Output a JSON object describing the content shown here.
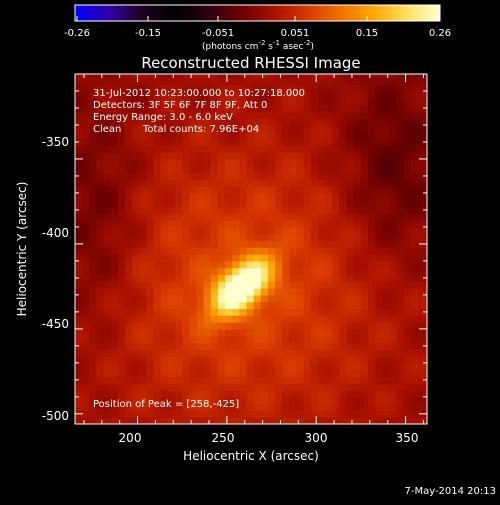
{
  "colorbar": {
    "ticks": [
      "-0.26",
      "-0.15",
      "-0.051",
      "0.051",
      "0.15",
      "0.26"
    ],
    "unit_main": "(photons cm",
    "unit_sup1": "-2",
    "unit_mid": " s",
    "unit_sup2": "-1",
    "unit_tail": " asec",
    "unit_sup3": "-2",
    "unit_close": ")",
    "colors": [
      "#0000ff",
      "#3000aa",
      "#200020",
      "#000000",
      "#2a0010",
      "#6a0000",
      "#a81000",
      "#d83800",
      "#f07000",
      "#ffa800",
      "#ffe060",
      "#ffffd0"
    ]
  },
  "chart_data": {
    "type": "heatmap",
    "title": "Reconstructed RHESSI Image",
    "xlabel": "Heliocentric X (arcsec)",
    "ylabel": "Heliocentric Y (arcsec)",
    "xlim": [
      165,
      362
    ],
    "ylim": [
      -506,
      -300
    ],
    "xticks": [
      "200",
      "250",
      "300",
      "350"
    ],
    "yticks": [
      "-350",
      "-400",
      "-450",
      "-500"
    ],
    "xtick_values": [
      200,
      250,
      300,
      350
    ],
    "ytick_values": [
      -350,
      -400,
      -450,
      -500
    ],
    "value_range": [
      -0.26,
      0.26
    ],
    "peak": [
      258,
      -425
    ],
    "annotations": {
      "time": "31-Jul-2012 10:23:00.000 to 10:27:18.000",
      "detectors": "Detectors: 3F 5F 6F 7F 8F 9F, Att 0",
      "energy": "Energy Range: 3.0 - 6.0 keV",
      "clean": "Clean",
      "counts": "Total counts: 7.96E+04",
      "peak_text": "Position of Peak = [258,-425]"
    }
  },
  "footer": {
    "date": "7-May-2014 20:13"
  }
}
